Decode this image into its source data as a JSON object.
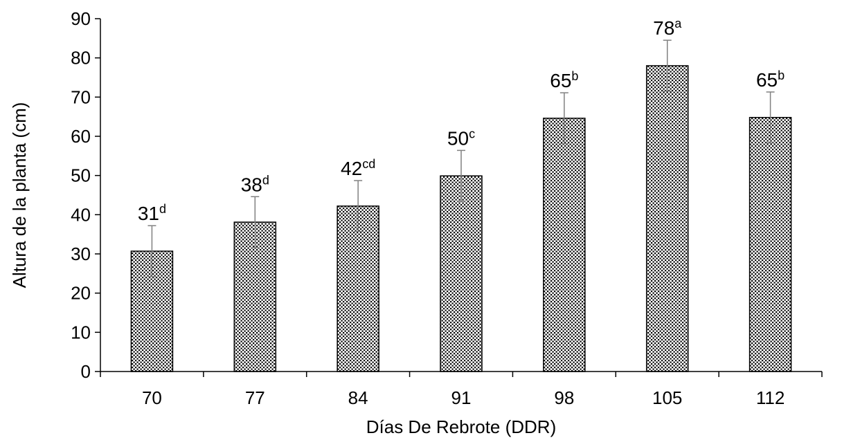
{
  "chart_data": {
    "type": "bar",
    "xlabel": "Días De Rebrote (DDR)",
    "ylabel": "Altura de la planta (cm)",
    "ylim": [
      0,
      90
    ],
    "ytick_step": 10,
    "categories": [
      "70",
      "77",
      "84",
      "91",
      "98",
      "105",
      "112"
    ],
    "values": [
      30.7,
      38.1,
      42.2,
      49.9,
      64.6,
      78.0,
      64.8
    ],
    "error": [
      6.5,
      6.5,
      6.5,
      6.5,
      6.5,
      6.5,
      6.5
    ],
    "labels": [
      "31",
      "38",
      "42",
      "50",
      "65",
      "78",
      "65"
    ],
    "letters": [
      "d",
      "d",
      "cd",
      "c",
      "b",
      "a",
      "b"
    ],
    "grid": false,
    "legend": "none",
    "bar_pattern": "crosshatch-dots",
    "colors": {
      "bar_fill": "#ffffff",
      "bar_stroke": "#000000",
      "error_bar": "#808080",
      "axis": "#000000"
    }
  }
}
